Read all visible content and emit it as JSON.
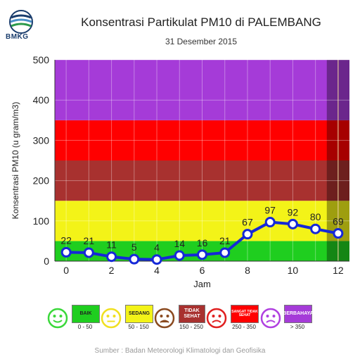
{
  "logo": {
    "text": "BMKG"
  },
  "chart_data": {
    "type": "line",
    "title": "Konsentrasi Partikulat PM10 di PALEMBANG",
    "subtitle": "31 Desember 2015",
    "xlabel": "Jam",
    "ylabel": "Konsentrasi PM10 (u gram/m3)",
    "xlim": [
      -0.5,
      12.5
    ],
    "ylim": [
      0,
      500
    ],
    "x_ticks": [
      0,
      2,
      4,
      6,
      8,
      10,
      12
    ],
    "y_ticks": [
      0,
      100,
      200,
      300,
      400,
      500
    ],
    "grid": true,
    "x": [
      0,
      1,
      2,
      3,
      4,
      5,
      6,
      7,
      8,
      9,
      10,
      11,
      12
    ],
    "values": [
      22,
      21,
      11,
      5,
      4,
      14,
      16,
      21,
      67,
      97,
      92,
      80,
      69
    ],
    "bands": [
      {
        "from": 0,
        "to": 50,
        "color": "#1fce1f"
      },
      {
        "from": 50,
        "to": 150,
        "color": "#f3f318"
      },
      {
        "from": 150,
        "to": 250,
        "color": "#a8312f"
      },
      {
        "from": 250,
        "to": 350,
        "color": "#ff0000"
      },
      {
        "from": 350,
        "to": 500,
        "color": "#a53bd8"
      }
    ],
    "line_color": "#1528d8"
  },
  "legend": [
    {
      "label": "BAIK",
      "range": "0 - 50",
      "color": "#1fce1f",
      "face": "smile"
    },
    {
      "label": "SEDANG",
      "range": "50 - 150",
      "color": "#f3f318",
      "face": "neutral"
    },
    {
      "label": "TIDAK SEHAT",
      "range": "150 - 250",
      "color": "#a8312f",
      "face": "sad"
    },
    {
      "label": "SANGAT TIDAK SEHAT",
      "range": "250 - 350",
      "color": "#ff0000",
      "face": "angry"
    },
    {
      "label": "BERBAHAYA",
      "range": "> 350",
      "color": "#a53bd8",
      "face": "danger"
    }
  ],
  "source": "Sumber : Badan Meteorologi Klimatologi dan Geofisika"
}
